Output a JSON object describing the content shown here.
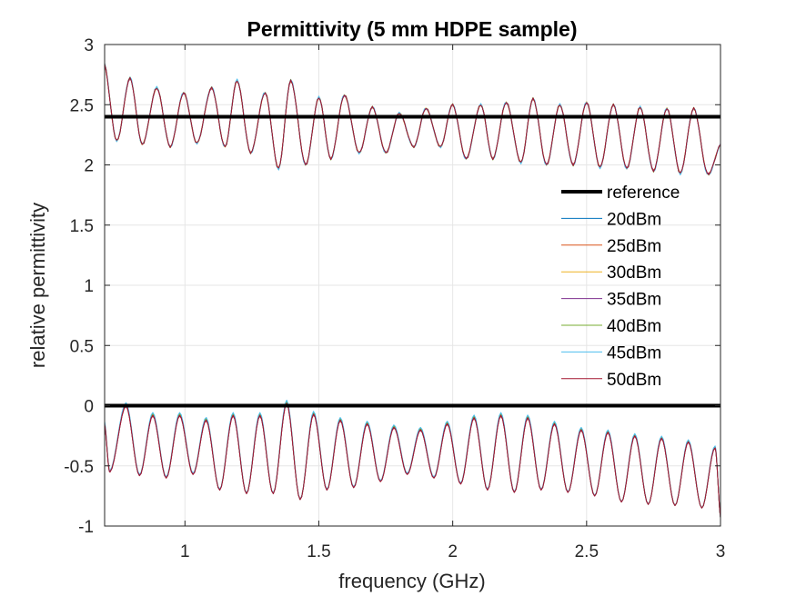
{
  "chart_data": {
    "type": "line",
    "title": "Permittivity (5 mm HDPE sample)",
    "xlabel": "frequency (GHz)",
    "ylabel": "relative permittivity",
    "xlim": [
      0.7,
      3
    ],
    "ylim": [
      -1,
      3
    ],
    "xticks": [
      1,
      1.5,
      2,
      2.5,
      3
    ],
    "xtick_labels": [
      "1",
      "1.5",
      "2",
      "2.5",
      "3"
    ],
    "yticks": [
      -1,
      -0.5,
      0,
      0.5,
      1,
      1.5,
      2,
      2.5,
      3
    ],
    "ytick_labels": [
      "-1",
      "-0.5",
      "0",
      "0.5",
      "1",
      "1.5",
      "2",
      "2.5",
      "3"
    ],
    "grid": true,
    "legend_position": "right",
    "reference": {
      "name": "reference",
      "real": 2.4,
      "imag": 0,
      "color": "#000000"
    },
    "series": [
      {
        "name": "20dBm",
        "color": "#0072BD",
        "offset": 0.0
      },
      {
        "name": "25dBm",
        "color": "#D95319",
        "offset": -0.01
      },
      {
        "name": "30dBm",
        "color": "#EDB120",
        "offset": 0.01
      },
      {
        "name": "35dBm",
        "color": "#7E2F8E",
        "offset": -0.005
      },
      {
        "name": "40dBm",
        "color": "#77AC30",
        "offset": 0.02
      },
      {
        "name": "45dBm",
        "color": "#4DBEEE",
        "offset": 0.035
      },
      {
        "name": "50dBm",
        "color": "#A2142F",
        "offset": 0.0
      }
    ],
    "real_part": {
      "x": [
        0.7,
        0.745,
        0.795,
        0.84,
        0.895,
        0.945,
        0.995,
        1.045,
        1.1,
        1.15,
        1.195,
        1.245,
        1.3,
        1.35,
        1.395,
        1.45,
        1.5,
        1.545,
        1.595,
        1.65,
        1.7,
        1.75,
        1.8,
        1.855,
        1.9,
        1.955,
        2.0,
        2.05,
        2.105,
        2.15,
        2.2,
        2.255,
        2.3,
        2.35,
        2.4,
        2.45,
        2.5,
        2.55,
        2.6,
        2.65,
        2.7,
        2.75,
        2.8,
        2.85,
        2.9,
        2.95,
        3.0
      ],
      "y": [
        2.84,
        2.2,
        2.72,
        2.17,
        2.64,
        2.15,
        2.6,
        2.18,
        2.64,
        2.15,
        2.7,
        2.1,
        2.6,
        1.97,
        2.7,
        2.0,
        2.56,
        2.05,
        2.58,
        2.1,
        2.48,
        2.1,
        2.43,
        2.15,
        2.47,
        2.15,
        2.5,
        2.05,
        2.5,
        2.05,
        2.52,
        2.02,
        2.55,
        2.0,
        2.5,
        2.0,
        2.52,
        1.98,
        2.5,
        1.97,
        2.48,
        1.95,
        2.47,
        1.93,
        2.47,
        1.93,
        2.17
      ]
    },
    "imag_part": {
      "x": [
        0.7,
        0.72,
        0.78,
        0.83,
        0.88,
        0.93,
        0.98,
        1.03,
        1.08,
        1.13,
        1.18,
        1.23,
        1.28,
        1.33,
        1.38,
        1.43,
        1.48,
        1.53,
        1.58,
        1.63,
        1.68,
        1.73,
        1.78,
        1.83,
        1.88,
        1.93,
        1.98,
        2.03,
        2.08,
        2.13,
        2.18,
        2.23,
        2.28,
        2.33,
        2.38,
        2.43,
        2.48,
        2.53,
        2.58,
        2.63,
        2.68,
        2.73,
        2.78,
        2.83,
        2.88,
        2.93,
        2.98,
        3.0
      ],
      "y": [
        -0.15,
        -0.55,
        0.0,
        -0.58,
        -0.08,
        -0.6,
        -0.08,
        -0.57,
        -0.12,
        -0.7,
        -0.08,
        -0.73,
        -0.08,
        -0.73,
        0.02,
        -0.78,
        -0.07,
        -0.7,
        -0.12,
        -0.68,
        -0.15,
        -0.63,
        -0.18,
        -0.57,
        -0.2,
        -0.6,
        -0.15,
        -0.65,
        -0.1,
        -0.7,
        -0.08,
        -0.72,
        -0.1,
        -0.7,
        -0.15,
        -0.72,
        -0.2,
        -0.75,
        -0.22,
        -0.8,
        -0.25,
        -0.82,
        -0.27,
        -0.83,
        -0.3,
        -0.85,
        -0.35,
        -0.93
      ]
    }
  }
}
